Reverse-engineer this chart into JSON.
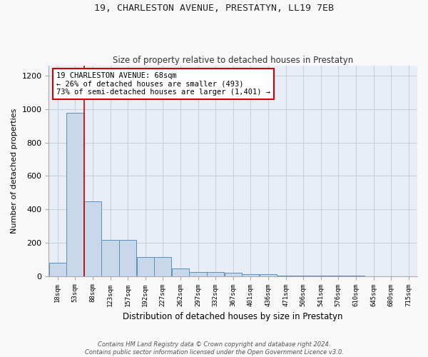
{
  "title": "19, CHARLESTON AVENUE, PRESTATYN, LL19 7EB",
  "subtitle": "Size of property relative to detached houses in Prestatyn",
  "xlabel": "Distribution of detached houses by size in Prestatyn",
  "ylabel": "Number of detached properties",
  "footer_line1": "Contains HM Land Registry data © Crown copyright and database right 2024.",
  "footer_line2": "Contains public sector information licensed under the Open Government Licence v3.0.",
  "bins": [
    "18sqm",
    "53sqm",
    "88sqm",
    "123sqm",
    "157sqm",
    "192sqm",
    "227sqm",
    "262sqm",
    "297sqm",
    "332sqm",
    "367sqm",
    "401sqm",
    "436sqm",
    "471sqm",
    "506sqm",
    "541sqm",
    "576sqm",
    "610sqm",
    "645sqm",
    "680sqm",
    "715sqm"
  ],
  "values": [
    80,
    980,
    450,
    215,
    215,
    115,
    115,
    45,
    25,
    25,
    20,
    12,
    10,
    5,
    3,
    2,
    1,
    1,
    0,
    0,
    0
  ],
  "bar_color": "#c8d8ea",
  "bar_edge_color": "#6090b8",
  "plot_bg_color": "#e8eef8",
  "fig_bg_color": "#f8f8f8",
  "grid_color": "#d0d8e8",
  "red_line_x": 1.5,
  "annotation_text": "19 CHARLESTON AVENUE: 68sqm\n← 26% of detached houses are smaller (493)\n73% of semi-detached houses are larger (1,401) →",
  "annotation_box_color": "#ffffff",
  "annotation_box_edge": "#cc0000",
  "ylim": [
    0,
    1260
  ],
  "yticks": [
    0,
    200,
    400,
    600,
    800,
    1000,
    1200
  ]
}
